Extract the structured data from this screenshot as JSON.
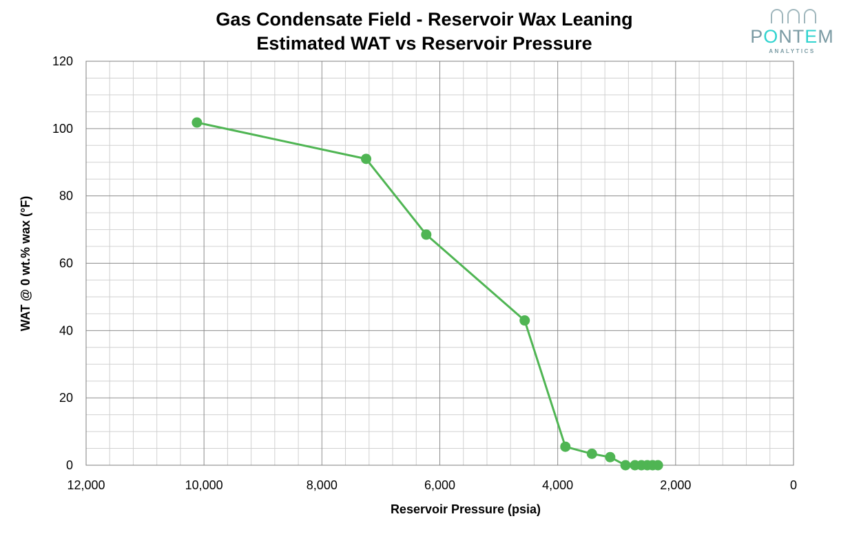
{
  "chart_data": {
    "type": "line",
    "title": "Gas Condensate Field - Reservoir Wax Leaning",
    "subtitle": "Estimated WAT vs Reservoir Pressure",
    "xlabel": "Reservoir Pressure (psia)",
    "ylabel": "WAT @ 0 wt.% wax (°F)",
    "xlim": [
      12000,
      0
    ],
    "ylim": [
      0,
      120
    ],
    "x_reversed": true,
    "x_ticks": [
      "12,000",
      "10,000",
      "8,000",
      "6,000",
      "4,000",
      "2,000",
      "0"
    ],
    "y_ticks": [
      "0",
      "20",
      "40",
      "60",
      "80",
      "100",
      "120"
    ],
    "grid": true,
    "series": [
      {
        "color": "#4fb553",
        "marker": "circle",
        "x": [
          10120,
          7250,
          6230,
          4560,
          3870,
          3420,
          3110,
          2850,
          2690,
          2580,
          2480,
          2390,
          2300
        ],
        "y": [
          101.8,
          91,
          68.5,
          43,
          5.5,
          3.4,
          2.4,
          0,
          0,
          0,
          0,
          0,
          0
        ]
      }
    ]
  },
  "logo": {
    "name": "PONTEM",
    "tagline": "ANALYTICS",
    "color": "#7a9aa3",
    "accent": "#2fd3cf"
  }
}
